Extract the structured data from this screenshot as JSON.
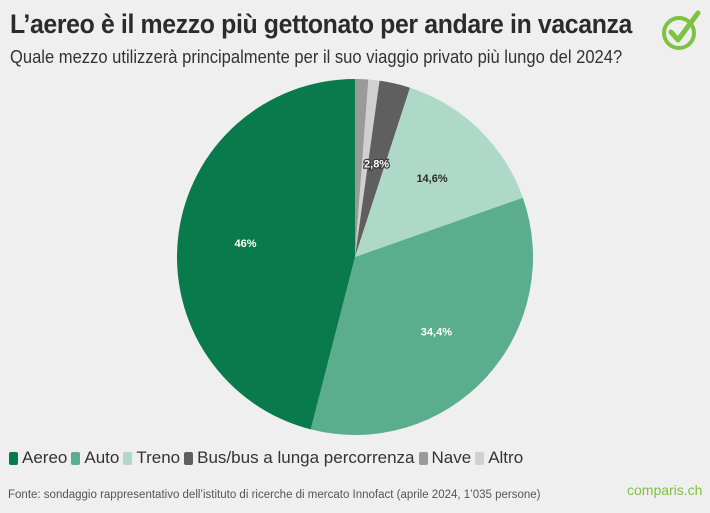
{
  "header": {
    "title": "L’aereo è il mezzo più gettonato per andare in vacanza",
    "subtitle": "Quale mezzo utilizzerà principalmente per il suo viaggio privato più lungo del 2024?",
    "logo_icon": "checkmark-circle-icon"
  },
  "chart_data": {
    "type": "pie",
    "title": "L’aereo è il mezzo più gettonato per andare in vacanza",
    "subtitle": "Quale mezzo utilizzerà principalmente per il suo viaggio privato più lungo del 2024?",
    "start_angle": "12 o'clock, clockwise",
    "legend_position": "bottom",
    "slices": [
      {
        "label": "Nave",
        "value": 1.2,
        "color": "#9a9a9a",
        "data_label": ""
      },
      {
        "label": "Altro",
        "value": 1.0,
        "color": "#d0d0d0",
        "data_label": ""
      },
      {
        "label": "Bus/bus a lunga percorrenza",
        "value": 2.8,
        "color": "#5f5f5f",
        "data_label": "2,8%"
      },
      {
        "label": "Treno",
        "value": 14.6,
        "color": "#aed8c8",
        "data_label": "14,6%"
      },
      {
        "label": "Auto",
        "value": 34.4,
        "color": "#5aad8d",
        "data_label": "34,4%"
      },
      {
        "label": "Aereo",
        "value": 46.0,
        "color": "#087a4c",
        "data_label": "46%"
      }
    ]
  },
  "legend": {
    "items": [
      {
        "label": "Aereo",
        "color": "#087a4c"
      },
      {
        "label": "Auto",
        "color": "#5aad8d"
      },
      {
        "label": "Treno",
        "color": "#aed8c8"
      },
      {
        "label": "Bus/bus a lunga percorrenza",
        "color": "#5f5f5f"
      },
      {
        "label": "Nave",
        "color": "#9a9a9a"
      },
      {
        "label": "Altro",
        "color": "#d0d0d0"
      }
    ]
  },
  "footer": {
    "source": "Fonte: sondaggio rappresentativo dell’istituto di ricerche di mercato Innofact (aprile 2024, 1’035 persone)",
    "brand": "comparis.ch"
  },
  "colors": {
    "brand_green": "#7dc242",
    "background": "#efefef"
  }
}
